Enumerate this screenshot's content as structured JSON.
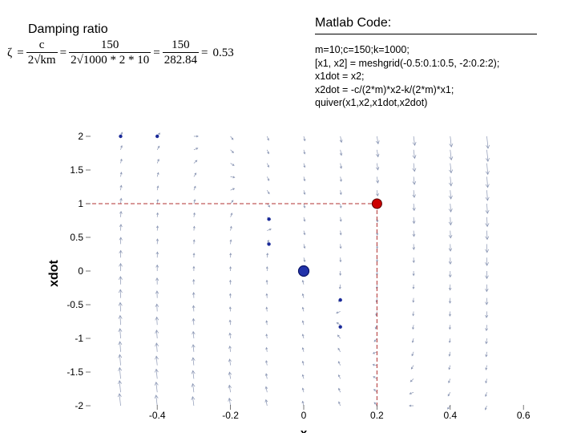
{
  "left_title": "Damping ratio",
  "formula": {
    "lhs": "ζ",
    "eq": "=",
    "f1_num": "c",
    "f1_den": "2√km",
    "f2_num": "150",
    "f2_den": "2√1000 * 2 * 10",
    "f3_num": "150",
    "f3_den": "282.84",
    "result": "0.53"
  },
  "code_title": "Matlab Code:",
  "code_lines": [
    "m=10;c=150;k=1000;",
    "[x1, x2] = meshgrid(-0.5:0.1:0.5, -2:0.2:2);",
    "x1dot = x2;",
    "x2dot = -c/(2*m)*x2-k/(2*m)*x1;",
    "quiver(x1,x2,x1dot,x2dot)"
  ],
  "chart_data": {
    "type": "quiver",
    "xlabel": "x",
    "ylabel": "xdot",
    "xlim": [
      -0.5,
      0.65
    ],
    "ylim": [
      -2,
      2
    ],
    "xticks": [
      -0.4,
      -0.2,
      0,
      0.2,
      0.4,
      0.6
    ],
    "xtick_labels": [
      "-0.4",
      "-0.2",
      "0",
      "0.2",
      "0.4",
      "0.6"
    ],
    "yticks": [
      2,
      1.5,
      1,
      0.5,
      0,
      -0.5,
      -1,
      -1.5,
      -2
    ],
    "ytick_labels": [
      "2",
      "1.5",
      "1",
      "0.5",
      "0",
      "-0.5",
      "-1",
      "-1.5",
      "-2"
    ],
    "grid": false,
    "params": {
      "m": 10,
      "c": 150,
      "k": 1000
    },
    "vector_field": {
      "x_range": [
        -0.5,
        0.5,
        0.1
      ],
      "y_range": [
        -2,
        2,
        0.2
      ],
      "u": "x2",
      "v": "-c/(2*m)*x2-k/(2*m)*x1",
      "color": "#8a96b4"
    },
    "trajectory_points": [
      {
        "x": -0.5,
        "y": 2
      },
      {
        "x": -0.4,
        "y": 2
      },
      {
        "x": -0.095,
        "y": 0.77
      },
      {
        "x": -0.095,
        "y": 0.4
      },
      {
        "x": 0.1,
        "y": -0.43
      },
      {
        "x": 0.1,
        "y": -0.83
      }
    ],
    "start_point": {
      "x": 0.2,
      "y": 1,
      "color": "#cc0000"
    },
    "origin_point": {
      "x": 0,
      "y": 0,
      "color": "#2233aa"
    },
    "reference_lines": {
      "x": 0.2,
      "y": 1,
      "color": "#b03030"
    },
    "point_color": "#1a2a99"
  }
}
